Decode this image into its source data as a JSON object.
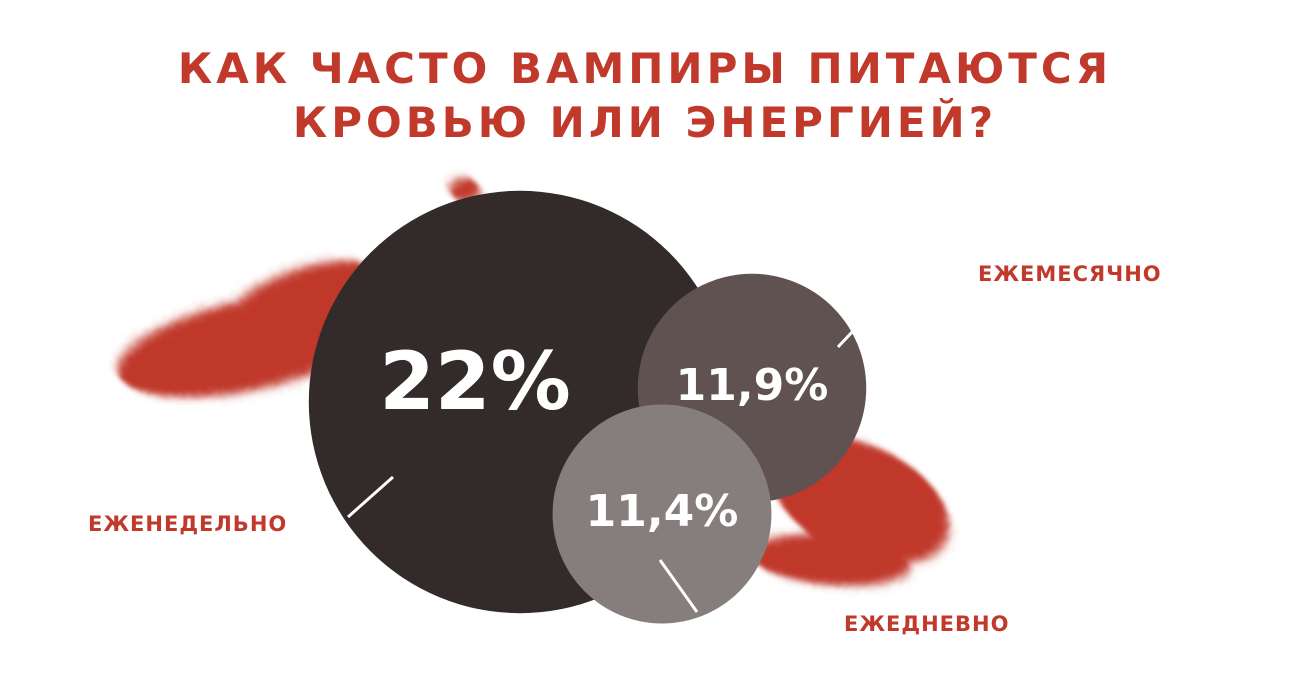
{
  "chart_data": {
    "type": "bubble",
    "title": "КАК ЧАСТО ВАМПИРЫ ПИТАЮТСЯ КРОВЬЮ ИЛИ ЭНЕРГИЕЙ?",
    "categories": [
      "ЕЖЕНЕДЕЛЬНО",
      "ЕЖЕМЕСЯЧНО",
      "ЕЖЕДНЕВНО"
    ],
    "values": [
      22,
      11.9,
      11.4
    ],
    "value_labels": [
      "22%",
      "11,9%",
      "11,4%"
    ],
    "colors": [
      "#332a2a",
      "#5f5250",
      "#867d7d"
    ]
  }
}
